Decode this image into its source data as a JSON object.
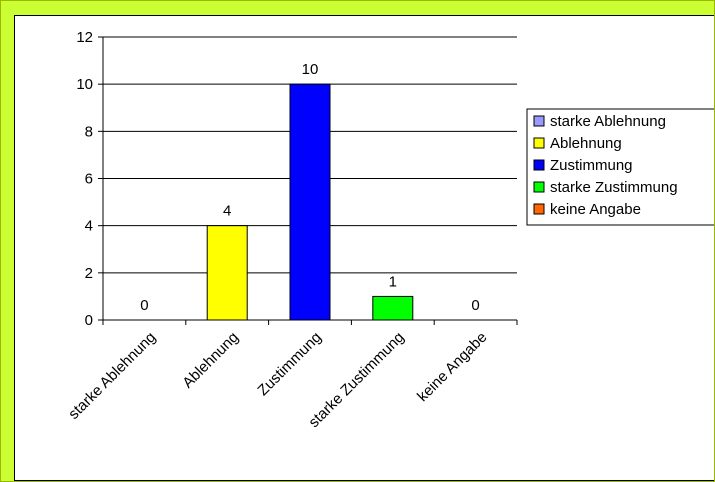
{
  "chart_data": {
    "type": "bar",
    "categories": [
      "starke Ablehnung",
      "Ablehnung",
      "Zustimmung",
      "starke Zustimmung",
      "keine Angabe"
    ],
    "values": [
      0,
      4,
      10,
      1,
      0
    ],
    "data_labels": [
      "0",
      "4",
      "10",
      "1",
      "0"
    ],
    "colors": [
      "#9999ff",
      "#ffff00",
      "#0000ff",
      "#00ff00",
      "#ff6600"
    ],
    "ylim": [
      0,
      12
    ],
    "yticks": [
      0,
      2,
      4,
      6,
      8,
      10,
      12
    ],
    "grid": true,
    "legend_position": "right",
    "legend": [
      "starke Ablehnung",
      "Ablehnung",
      "Zustimmung",
      "starke Zustimmung",
      "keine Angabe"
    ]
  }
}
